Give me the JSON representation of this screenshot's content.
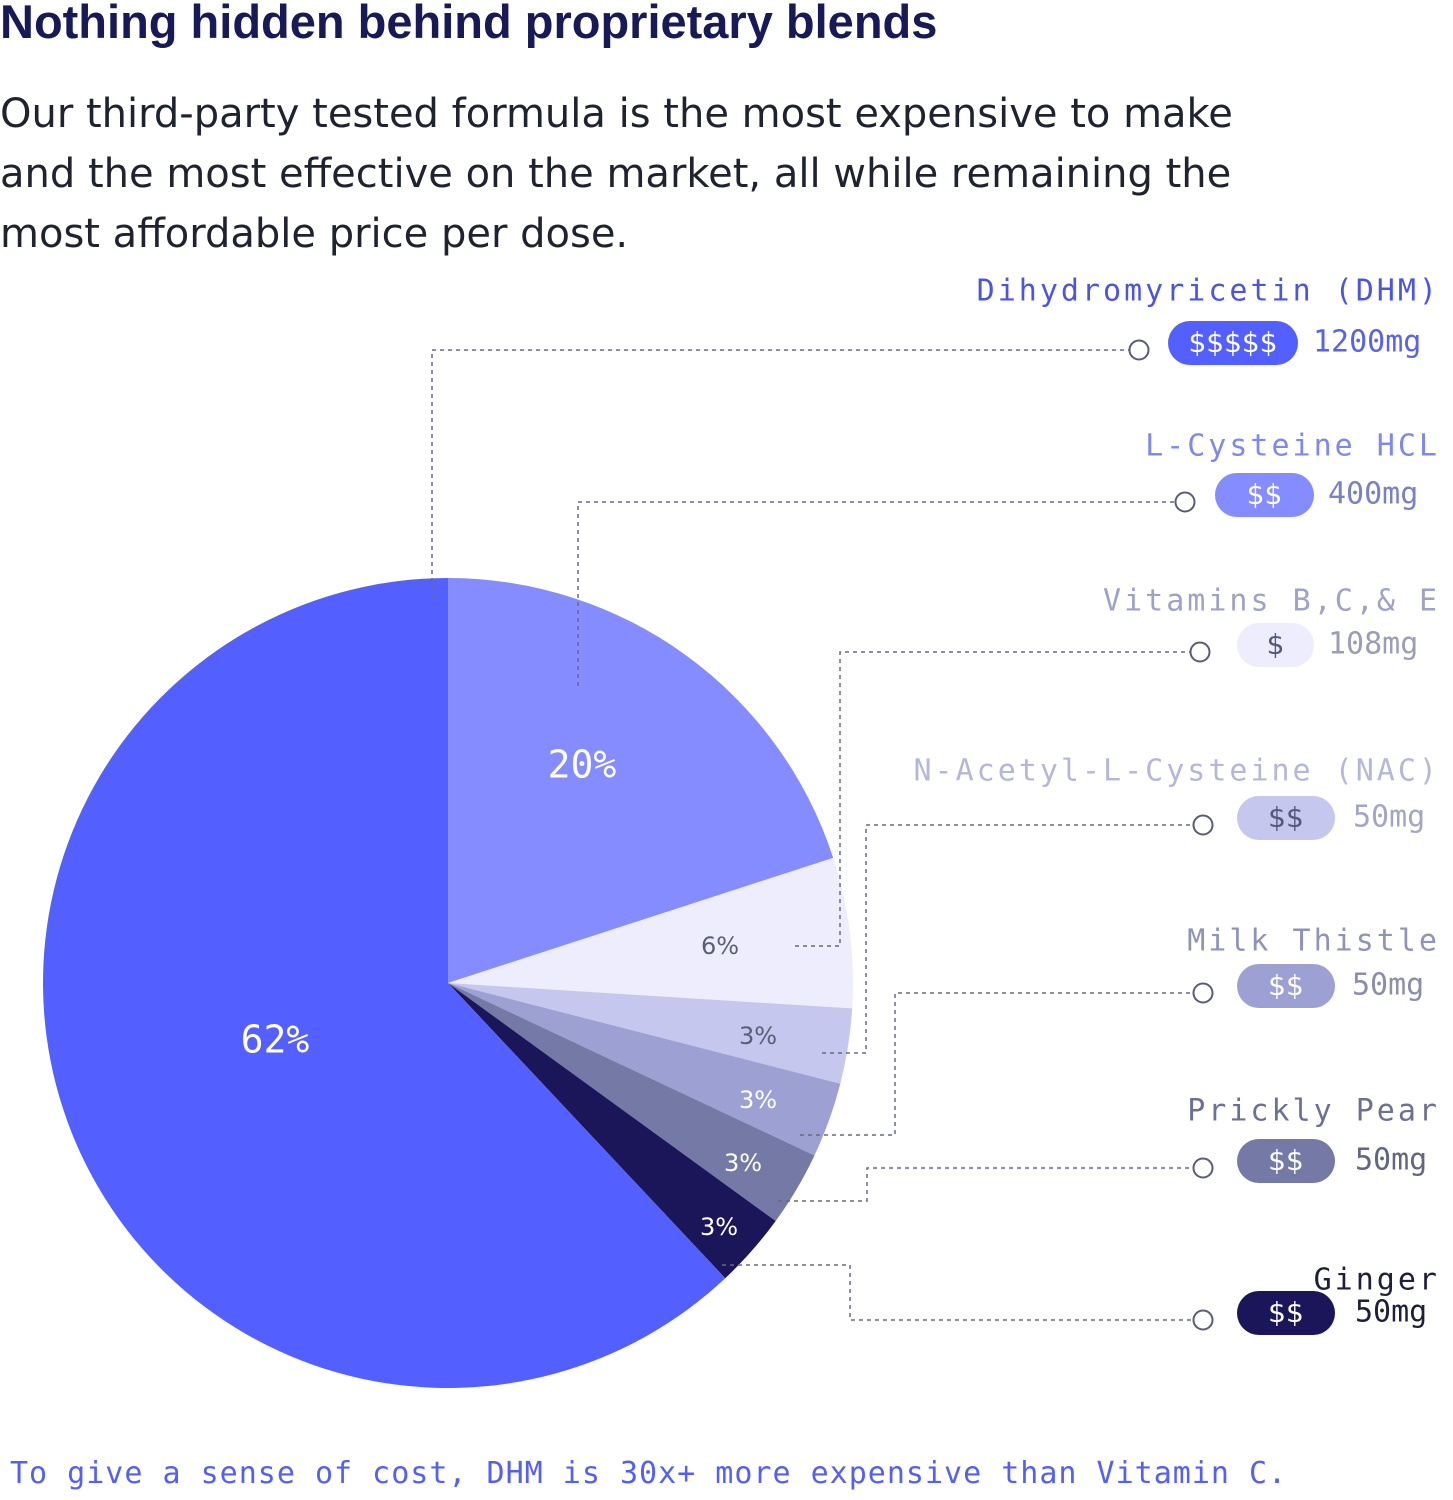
{
  "header": {
    "title": "Nothing hidden behind proprietary blends",
    "subtitle": "Our third-party tested formula is the most expensive to make and the most effective on the market, all while remaining the most affordable price per dose."
  },
  "footnote": "To give a sense of cost, DHM is 30x+ more expensive than Vitamin C.",
  "chart_data": {
    "type": "pie",
    "title": "",
    "slices": [
      {
        "name": "Dihydromyricetin (DHM)",
        "percent": 62,
        "label": "62%",
        "cost": "$$$$$",
        "amount": "1200mg",
        "color": "#5360ff",
        "label_color": "#ffffff",
        "name_color": "#4d55e0",
        "amount_color": "#5a62e6",
        "badge_text_color": "#ffffff"
      },
      {
        "name": "L-Cysteine HCL",
        "percent": 20,
        "label": "20%",
        "cost": "$$",
        "amount": "400mg",
        "color": "#848cff",
        "label_color": "#ffffff",
        "name_color": "#8088ee",
        "amount_color": "#7a80c8",
        "badge_text_color": "#ffffff"
      },
      {
        "name": "Vitamins B,C,& E",
        "percent": 6,
        "label": "6%",
        "cost": "$",
        "amount": "108mg",
        "color": "#ededfd",
        "label_color": "#5a5d75",
        "name_color": "#9ea2c4",
        "amount_color": "#9a9db8",
        "badge_text_color": "#54587a"
      },
      {
        "name": "N-Acetyl-L-Cysteine (NAC)",
        "percent": 3,
        "label": "3%",
        "cost": "$$",
        "amount": "50mg",
        "color": "#c5c7ee",
        "label_color": "#5a5d75",
        "name_color": "#b4b7d8",
        "amount_color": "#a3a6c2",
        "badge_text_color": "#54587a"
      },
      {
        "name": "Milk Thistle",
        "percent": 3,
        "label": "3%",
        "cost": "$$",
        "amount": "50mg",
        "color": "#9ca0d2",
        "label_color": "#ffffff",
        "name_color": "#8f93b8",
        "amount_color": "#8a8ea8",
        "badge_text_color": "#ffffff"
      },
      {
        "name": "Prickly Pear",
        "percent": 3,
        "label": "3%",
        "cost": "$$",
        "amount": "50mg",
        "color": "#7479a6",
        "label_color": "#ffffff",
        "name_color": "#6c7092",
        "amount_color": "#626680",
        "badge_text_color": "#ffffff"
      },
      {
        "name": "Ginger",
        "percent": 3,
        "label": "3%",
        "cost": "$$",
        "amount": "50mg",
        "color": "#1a1659",
        "label_color": "#ffffff",
        "name_color": "#1e1f3a",
        "amount_color": "#1e1f3a",
        "badge_text_color": "#ffffff"
      }
    ],
    "legend": "right"
  }
}
